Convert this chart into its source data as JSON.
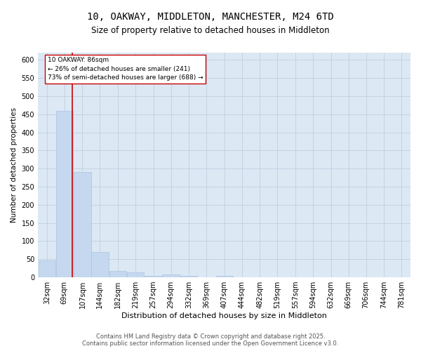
{
  "title": "10, OAKWAY, MIDDLETON, MANCHESTER, M24 6TD",
  "subtitle": "Size of property relative to detached houses in Middleton",
  "xlabel": "Distribution of detached houses by size in Middleton",
  "ylabel": "Number of detached properties",
  "footer_line1": "Contains HM Land Registry data © Crown copyright and database right 2025.",
  "footer_line2": "Contains public sector information licensed under the Open Government Licence v3.0.",
  "bar_color": "#c5d8f0",
  "bar_edgecolor": "#a8c4e0",
  "grid_color": "#c0d0e0",
  "bg_color": "#dce8f4",
  "annotation_box_text": "10 OAKWAY: 86sqm\n← 26% of detached houses are smaller (241)\n73% of semi-detached houses are larger (688) →",
  "annotation_box_color": "#cc0000",
  "vline_color": "#cc0000",
  "property_size_sqm": 86,
  "categories": [
    "32sqm",
    "69sqm",
    "107sqm",
    "144sqm",
    "182sqm",
    "219sqm",
    "257sqm",
    "294sqm",
    "332sqm",
    "369sqm",
    "407sqm",
    "444sqm",
    "482sqm",
    "519sqm",
    "557sqm",
    "594sqm",
    "632sqm",
    "669sqm",
    "706sqm",
    "744sqm",
    "781sqm"
  ],
  "bin_edges": [
    32,
    69,
    107,
    144,
    182,
    219,
    257,
    294,
    332,
    369,
    407,
    444,
    482,
    519,
    557,
    594,
    632,
    669,
    706,
    744,
    781
  ],
  "bin_width": 37,
  "values": [
    47,
    460,
    290,
    70,
    17,
    13,
    5,
    8,
    5,
    0,
    4,
    0,
    0,
    0,
    0,
    0,
    0,
    0,
    0,
    0,
    0
  ],
  "ylim": [
    0,
    620
  ],
  "yticks": [
    0,
    50,
    100,
    150,
    200,
    250,
    300,
    350,
    400,
    450,
    500,
    550,
    600
  ]
}
